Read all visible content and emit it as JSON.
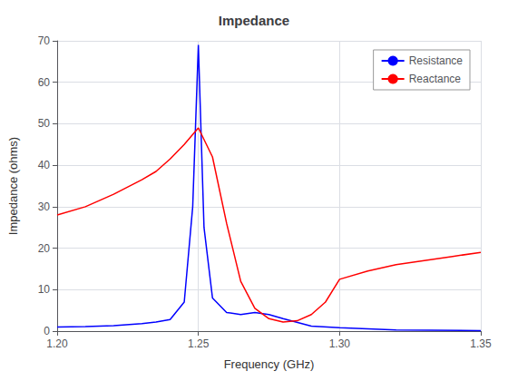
{
  "chart_data": {
    "type": "line",
    "title": "Impedance",
    "xlabel": "Frequency (GHz)",
    "ylabel": "Impedance (ohms)",
    "xlim": [
      1.2,
      1.35
    ],
    "ylim": [
      0,
      70
    ],
    "xticks": [
      {
        "value": 1.2,
        "label": "1.20"
      },
      1.25,
      {
        "value": 1.3,
        "label": "1.30"
      },
      1.35
    ],
    "yticks": [
      0,
      10,
      20,
      30,
      40,
      50,
      60,
      70
    ],
    "grid": true,
    "legend": "upper right",
    "series": [
      {
        "name": "Resistance",
        "color": "#0000FF",
        "x": [
          1.2,
          1.21,
          1.22,
          1.23,
          1.235,
          1.24,
          1.245,
          1.248,
          1.25,
          1.252,
          1.255,
          1.26,
          1.265,
          1.27,
          1.275,
          1.28,
          1.29,
          1.3,
          1.32,
          1.35
        ],
        "values": [
          1.0,
          1.1,
          1.3,
          1.8,
          2.2,
          2.8,
          7.0,
          30.0,
          69.0,
          25.0,
          8.0,
          4.5,
          4.0,
          4.5,
          4.0,
          3.0,
          1.2,
          0.8,
          0.3,
          0.1
        ]
      },
      {
        "name": "Reactance",
        "color": "#FF0000",
        "x": [
          1.2,
          1.21,
          1.22,
          1.23,
          1.235,
          1.24,
          1.245,
          1.25,
          1.255,
          1.26,
          1.265,
          1.27,
          1.275,
          1.28,
          1.285,
          1.29,
          1.295,
          1.3,
          1.31,
          1.32,
          1.33,
          1.34,
          1.35
        ],
        "values": [
          28.0,
          30.0,
          33.0,
          36.5,
          38.5,
          41.5,
          45.0,
          49.0,
          42.0,
          26.0,
          12.0,
          5.5,
          3.0,
          2.2,
          2.5,
          4.0,
          7.0,
          12.5,
          14.5,
          16.0,
          17.0,
          18.0,
          19.0
        ]
      }
    ]
  }
}
